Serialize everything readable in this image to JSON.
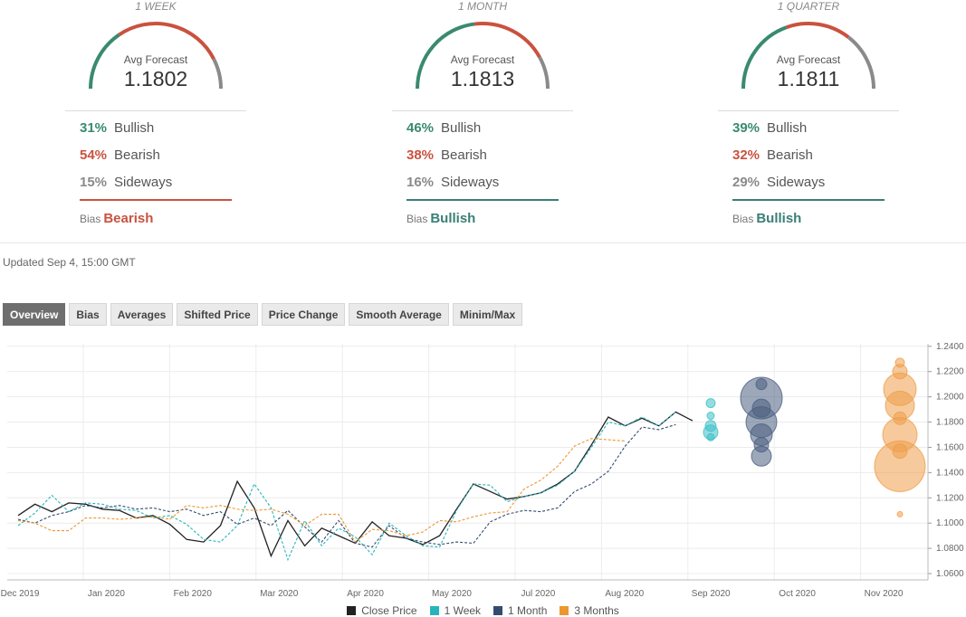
{
  "forecasts": [
    {
      "period": "1 WEEK",
      "avg_label": "Avg Forecast",
      "avg_value": "1.1802",
      "bullish_pct": "31%",
      "bearish_pct": "54%",
      "sideways_pct": "15%",
      "bullish": 31,
      "bearish": 54,
      "sideways": 15,
      "bullish_label": "Bullish",
      "bearish_label": "Bearish",
      "sideways_label": "Sideways",
      "bias_label": "Bias",
      "bias_value": "Bearish",
      "bias_color": "#c9523f"
    },
    {
      "period": "1 MONTH",
      "avg_label": "Avg Forecast",
      "avg_value": "1.1813",
      "bullish_pct": "46%",
      "bearish_pct": "38%",
      "sideways_pct": "16%",
      "bullish": 46,
      "bearish": 38,
      "sideways": 16,
      "bullish_label": "Bullish",
      "bearish_label": "Bearish",
      "sideways_label": "Sideways",
      "bias_label": "Bias",
      "bias_value": "Bullish",
      "bias_color": "#3a7f78"
    },
    {
      "period": "1 QUARTER",
      "avg_label": "Avg Forecast",
      "avg_value": "1.1811",
      "bullish_pct": "39%",
      "bearish_pct": "32%",
      "sideways_pct": "29%",
      "bullish": 39,
      "bearish": 32,
      "sideways": 29,
      "bullish_label": "Bullish",
      "bearish_label": "Bearish",
      "sideways_label": "Sideways",
      "bias_label": "Bias",
      "bias_value": "Bullish",
      "bias_color": "#3a7f78"
    }
  ],
  "colors": {
    "bullish": "#3a8a6f",
    "bearish": "#c9523f",
    "sideways": "#8a8a8a"
  },
  "updated": "Updated Sep 4, 15:00 GMT",
  "tabs": [
    "Overview",
    "Bias",
    "Averages",
    "Shifted Price",
    "Price Change",
    "Smooth Average",
    "Minim/Max"
  ],
  "active_tab": "Overview",
  "chart_data": {
    "type": "line",
    "x_ticks": [
      "Dec 2019",
      "Jan 2020",
      "Feb 2020",
      "Mar 2020",
      "Apr 2020",
      "May 2020",
      "Jul 2020",
      "Aug 2020",
      "Sep 2020",
      "Oct 2020",
      "Nov 2020"
    ],
    "y_ticks": [
      "1.2400",
      "1.2200",
      "1.2000",
      "1.1800",
      "1.1600",
      "1.1400",
      "1.1200",
      "1.1000",
      "1.0800",
      "1.0600"
    ],
    "ylim": [
      1.055,
      1.242
    ],
    "y_axis_position": "right",
    "grid": true,
    "legend_position": "bottom",
    "series": [
      {
        "name": "Close Price",
        "color": "#222222",
        "dash": "none",
        "values": [
          1.106,
          1.115,
          1.109,
          1.116,
          1.115,
          1.111,
          1.11,
          1.104,
          1.106,
          1.099,
          1.087,
          1.085,
          1.098,
          1.133,
          1.112,
          1.074,
          1.102,
          1.082,
          1.096,
          1.09,
          1.084,
          1.101,
          1.09,
          1.088,
          1.083,
          1.09,
          1.111,
          1.131,
          1.125,
          1.119,
          1.121,
          1.124,
          1.131,
          1.141,
          1.162,
          1.184,
          1.177,
          1.183,
          1.177,
          1.188,
          1.181
        ]
      },
      {
        "name": "1 Week",
        "color": "#26b5bd",
        "dash": "3,2",
        "values": [
          1.098,
          1.108,
          1.122,
          1.109,
          1.116,
          1.115,
          1.111,
          1.11,
          1.104,
          1.106,
          1.099,
          1.087,
          1.085,
          1.098,
          1.131,
          1.112,
          1.071,
          1.102,
          1.082,
          1.096,
          1.089,
          1.075,
          1.1,
          1.09,
          1.082,
          1.081,
          1.11,
          1.131,
          1.13,
          1.117,
          1.121,
          1.124,
          1.13,
          1.141,
          1.16,
          1.18,
          1.177,
          1.184,
          1.177,
          1.188
        ]
      },
      {
        "name": "1 Month",
        "color": "#334c6e",
        "dash": "3,2",
        "values": [
          1.103,
          1.1,
          1.106,
          1.109,
          1.114,
          1.112,
          1.114,
          1.111,
          1.112,
          1.109,
          1.111,
          1.106,
          1.109,
          1.099,
          1.104,
          1.098,
          1.11,
          1.097,
          1.085,
          1.102,
          1.084,
          1.081,
          1.098,
          1.088,
          1.085,
          1.083,
          1.085,
          1.084,
          1.101,
          1.107,
          1.11,
          1.109,
          1.112,
          1.125,
          1.131,
          1.141,
          1.161,
          1.176,
          1.174,
          1.178
        ]
      },
      {
        "name": "3 Months",
        "color": "#ec9731",
        "dash": "3,2",
        "values": [
          1.102,
          1.1,
          1.094,
          1.094,
          1.104,
          1.104,
          1.103,
          1.104,
          1.105,
          1.103,
          1.114,
          1.112,
          1.114,
          1.111,
          1.11,
          1.111,
          1.107,
          1.098,
          1.107,
          1.107,
          1.085,
          1.095,
          1.094,
          1.09,
          1.093,
          1.102,
          1.101,
          1.105,
          1.108,
          1.109,
          1.127,
          1.134,
          1.145,
          1.161,
          1.167,
          1.166,
          1.165
        ]
      }
    ],
    "bubbles": [
      {
        "series": "1 Week",
        "color": "#3cc0c6",
        "values": [
          1.195,
          1.185,
          1.177,
          1.172,
          1.168
        ]
      },
      {
        "series": "1 Month",
        "color": "#4a5f80",
        "values": [
          1.21,
          1.199,
          1.191,
          1.18,
          1.17,
          1.162,
          1.153
        ]
      },
      {
        "series": "3 Months",
        "color": "#ef9e4a",
        "values": [
          1.227,
          1.22,
          1.206,
          1.193,
          1.183,
          1.17,
          1.157,
          1.145,
          1.107
        ]
      }
    ]
  }
}
